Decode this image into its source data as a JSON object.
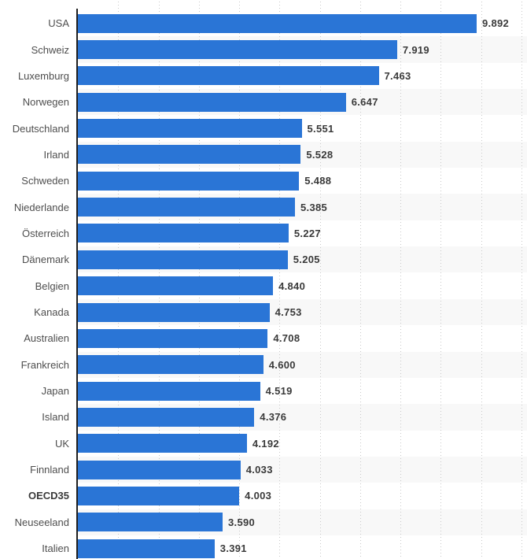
{
  "chart_data": {
    "type": "bar",
    "orientation": "horizontal",
    "title": "",
    "xlabel": "",
    "ylabel": "",
    "categories": [
      "USA",
      "Schweiz",
      "Luxemburg",
      "Norwegen",
      "Deutschland",
      "Irland",
      "Schweden",
      "Niederlande",
      "Österreich",
      "Dänemark",
      "Belgien",
      "Kanada",
      "Australien",
      "Frankreich",
      "Japan",
      "Island",
      "UK",
      "Finnland",
      "OECD35",
      "Neuseeland",
      "Italien"
    ],
    "values": [
      9892,
      7919,
      7463,
      6647,
      5551,
      5528,
      5488,
      5385,
      5227,
      5205,
      4840,
      4753,
      4708,
      4600,
      4519,
      4376,
      4192,
      4033,
      4003,
      3590,
      3391
    ],
    "value_labels": [
      "9.892",
      "7.919",
      "7.463",
      "6.647",
      "5.551",
      "5.528",
      "5.488",
      "5.385",
      "5.227",
      "5.205",
      "4.840",
      "4.753",
      "4.708",
      "4.600",
      "4.519",
      "4.376",
      "4.192",
      "4.033",
      "4.003",
      "3.590",
      "3.391"
    ],
    "bold_categories": [
      "OECD35"
    ],
    "xlim": [
      0,
      11140
    ],
    "grid_interval": 1000,
    "grid_style": "dotted-vertical",
    "legend": "none",
    "colors": {
      "bar": "#2a75d6",
      "axis_line": "#1f1f1f",
      "gridline": "#c9c9c9",
      "category_label": "#4e4e4e",
      "value_label": "#3a3a3a",
      "row_stripe": "#f8f8f8",
      "background": "#ffffff"
    }
  }
}
